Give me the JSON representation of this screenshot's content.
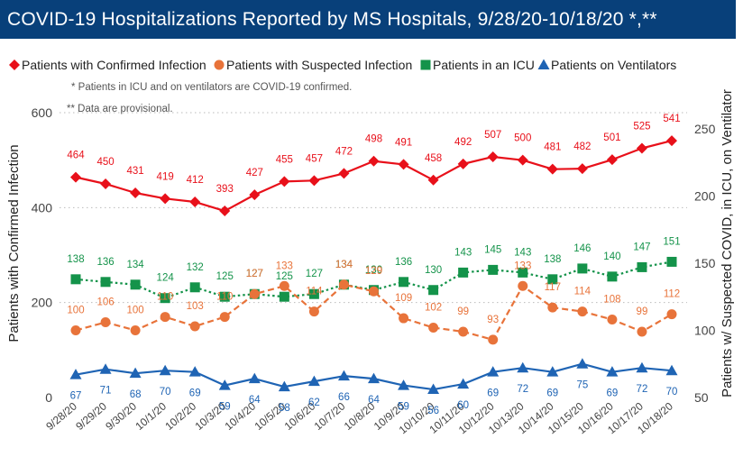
{
  "title": "COVID-19 Hospitalizations Reported by MS Hospitals, 9/28/20-10/18/20 *,**",
  "notes": [
    "* Patients in ICU and on ventilators are COVID-19 confirmed.",
    "** Data are provisional."
  ],
  "chart_data": {
    "type": "line",
    "title": "COVID-19 Hospitalizations Reported by MS Hospitals, 9/28/20-10/18/20 *,**",
    "categories": [
      "9/28/20",
      "9/29/20",
      "9/30/20",
      "10/1/20",
      "10/2/20",
      "10/3/20",
      "10/4/20",
      "10/5/20",
      "10/6/20",
      "10/7/20",
      "10/8/20",
      "10/9/20",
      "10/10/20",
      "10/11/20",
      "10/12/20",
      "10/13/20",
      "10/14/20",
      "10/15/20",
      "10/16/20",
      "10/17/20",
      "10/18/20"
    ],
    "ylabel_left": "Patients with Confirmed Infection",
    "ylabel_right": "Patients w/ Suspected COVID, in ICU, on Ventilator",
    "ylim_left": [
      0,
      600
    ],
    "ylim_right": [
      50,
      262
    ],
    "yticks_left": [
      0,
      200,
      400,
      600
    ],
    "yticks_right": [
      50,
      100,
      150,
      200,
      250
    ],
    "legend_position": "top",
    "grid": "horizontal dotted",
    "series": [
      {
        "name": "Patients with Confirmed Infection",
        "axis": "left",
        "color": "#e8101a",
        "marker": "diamond",
        "dash": "solid",
        "values": [
          464,
          450,
          431,
          419,
          412,
          393,
          427,
          455,
          457,
          472,
          498,
          491,
          458,
          492,
          507,
          500,
          481,
          482,
          501,
          525,
          541
        ]
      },
      {
        "name": "Patients with Suspected Infection",
        "axis": "right",
        "color": "#e8733a",
        "marker": "circle",
        "dash": "dashed",
        "values": [
          100,
          106,
          100,
          110,
          103,
          110,
          127,
          133,
          114,
          134,
          129,
          109,
          102,
          99,
          93,
          133,
          117,
          114,
          108,
          99,
          112
        ]
      },
      {
        "name": "Patients in an ICU",
        "axis": "right",
        "color": "#14934a",
        "marker": "square",
        "dash": "dotted",
        "values": [
          138,
          136,
          134,
          124,
          132,
          125,
          127,
          125,
          127,
          134,
          130,
          136,
          130,
          143,
          145,
          143,
          138,
          146,
          140,
          147,
          151
        ]
      },
      {
        "name": "Patients on Ventilators",
        "axis": "right",
        "color": "#1f64b4",
        "marker": "triangle",
        "dash": "solid",
        "values": [
          67,
          71,
          68,
          70,
          69,
          59,
          64,
          58,
          62,
          66,
          64,
          59,
          56,
          60,
          69,
          72,
          69,
          75,
          69,
          72,
          70
        ]
      }
    ]
  }
}
